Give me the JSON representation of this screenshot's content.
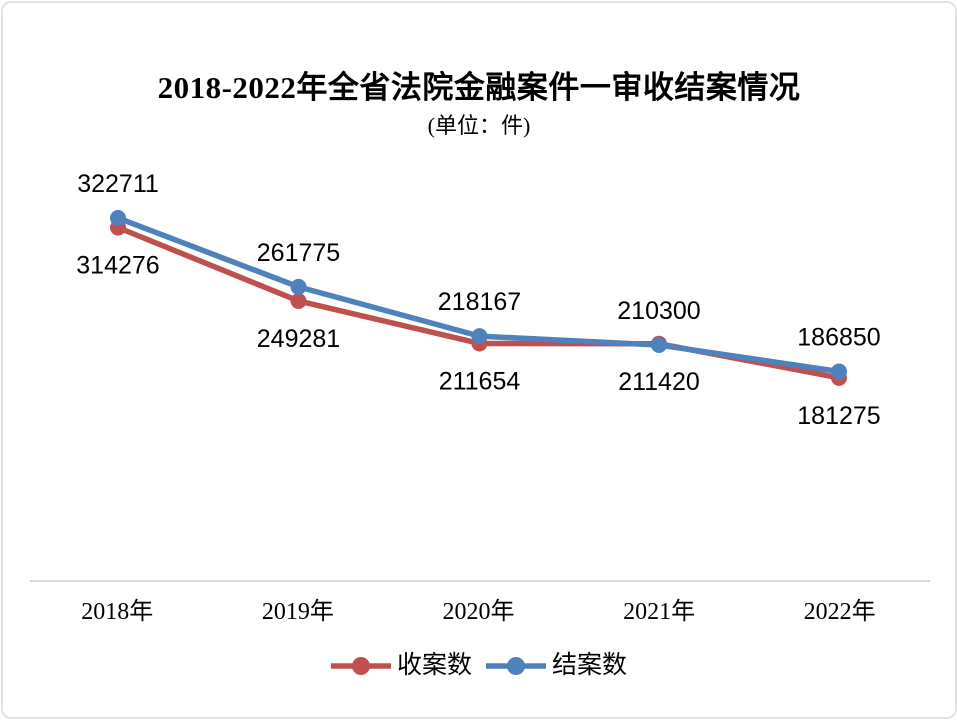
{
  "chart_data": {
    "type": "line",
    "title": "2018-2022年全省法院金融案件一审收结案情况",
    "subtitle": "(单位：件)",
    "categories": [
      "2018年",
      "2019年",
      "2020年",
      "2021年",
      "2022年"
    ],
    "series": [
      {
        "key": "cases-filed",
        "name": "收案数",
        "color": "#C0504D",
        "values": [
          314276,
          249281,
          211654,
          211420,
          181275
        ],
        "label_position": "below"
      },
      {
        "key": "cases-closed",
        "name": "结案数",
        "color": "#4F81BD",
        "values": [
          322711,
          261775,
          218167,
          210300,
          186850
        ],
        "label_position": "above"
      }
    ],
    "legend_position": "bottom",
    "grid": false,
    "marker": "circle",
    "axis_line_color": "#D9D9D9",
    "text_color": "#000000",
    "background_color": "#FFFFFF"
  }
}
